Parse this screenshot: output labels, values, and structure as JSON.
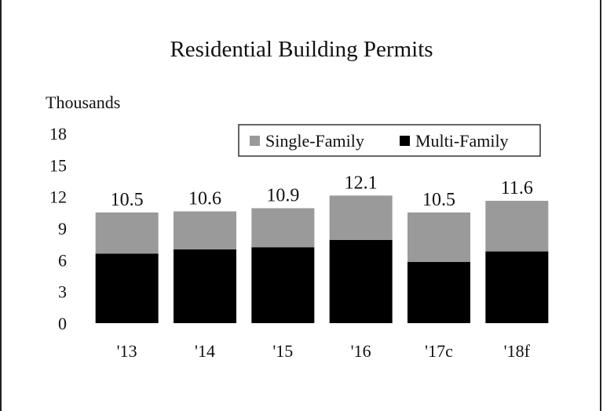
{
  "chart_data": {
    "type": "bar",
    "stacked": true,
    "title": "Residential Building Permits",
    "ylabel": "Thousands",
    "xlabel": "",
    "categories": [
      "'13",
      "'14",
      "'15",
      "'16",
      "'17c",
      "'18f"
    ],
    "ylim": [
      0,
      18
    ],
    "yticks": [
      "0",
      "3",
      "6",
      "9",
      "12",
      "15",
      "18"
    ],
    "totals_labels": [
      "10.5",
      "10.6",
      "10.9",
      "12.1",
      "10.5",
      "11.6"
    ],
    "series": [
      {
        "name": "Multi-Family",
        "color": "#000000",
        "values": [
          6.6,
          7.0,
          7.2,
          7.9,
          5.8,
          6.8
        ]
      },
      {
        "name": "Single-Family",
        "color": "#9a9a9a",
        "values": [
          3.9,
          3.6,
          3.7,
          4.2,
          4.7,
          4.8
        ]
      }
    ],
    "legend": {
      "placement": "top-right",
      "order": [
        "Single-Family",
        "Multi-Family"
      ]
    },
    "grid": false
  }
}
